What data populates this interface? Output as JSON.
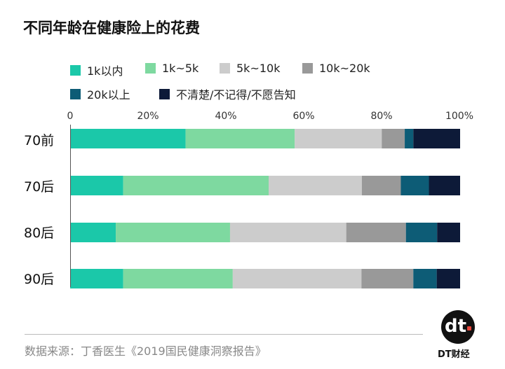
{
  "title": "不同年龄在健康险上的花费",
  "source": "数据来源：丁香医生《2019国民健康洞察报告》",
  "brand": "DT财经",
  "logo_text": "dt",
  "chart_data": {
    "type": "bar",
    "orientation": "horizontal",
    "stacked": true,
    "categories": [
      "70前",
      "70后",
      "80后",
      "90后"
    ],
    "series": [
      {
        "name": "1k以内",
        "color": "#1bc8a9",
        "values": [
          29.6,
          13.6,
          11.7,
          13.6
        ]
      },
      {
        "name": "1k~5k",
        "color": "#7ed9a0",
        "values": [
          28.0,
          37.3,
          29.3,
          28.1
        ]
      },
      {
        "name": "5k~10k",
        "color": "#cccccc",
        "values": [
          22.3,
          23.9,
          29.8,
          33.0
        ]
      },
      {
        "name": "10k~20k",
        "color": "#999999",
        "values": [
          5.9,
          10.0,
          15.3,
          13.3
        ]
      },
      {
        "name": "20k以上",
        "color": "#0d5c76",
        "values": [
          2.2,
          7.2,
          8.0,
          6.0
        ]
      },
      {
        "name": "不清楚/不记得/不愿告知",
        "color": "#0d1a38",
        "values": [
          12.0,
          8.0,
          5.9,
          6.0
        ]
      }
    ],
    "ticks": [
      "0",
      "20%",
      "40%",
      "60%",
      "80%",
      "100%"
    ],
    "xlim": [
      0,
      100
    ],
    "legend_position": "top"
  }
}
